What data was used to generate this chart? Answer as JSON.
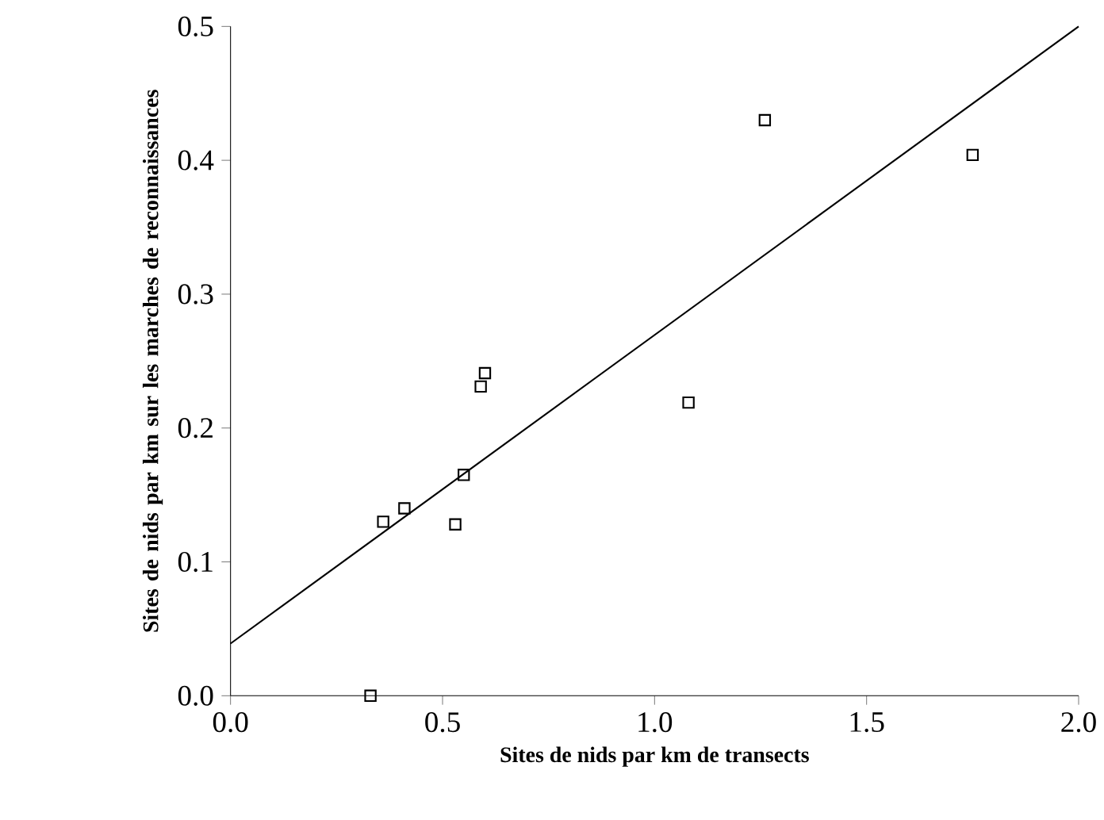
{
  "chart_data": {
    "type": "scatter",
    "xlabel": "Sites de nids par km de transects",
    "ylabel": "Sites de nids par km sur les marches de reconnaissances",
    "xlim": [
      0,
      2
    ],
    "ylim": [
      0,
      0.5
    ],
    "xticks": [
      {
        "value": 0,
        "label": "0.0"
      },
      {
        "value": 0.5,
        "label": "0.5"
      },
      {
        "value": 1,
        "label": "1.0"
      },
      {
        "value": 1.5,
        "label": "1.5"
      },
      {
        "value": 2,
        "label": "2.0"
      }
    ],
    "yticks": [
      {
        "value": 0,
        "label": "0.0"
      },
      {
        "value": 0.1,
        "label": "0.1"
      },
      {
        "value": 0.2,
        "label": "0.2"
      },
      {
        "value": 0.3,
        "label": "0.3"
      },
      {
        "value": 0.4,
        "label": "0.4"
      },
      {
        "value": 0.5,
        "label": "0.5"
      }
    ],
    "grid": false,
    "series": [
      {
        "marker": "square",
        "color": "#000000",
        "x": [
          0.36,
          0.33,
          0.41,
          0.53,
          0.55,
          0.59,
          0.6,
          1.08,
          1.26,
          1.75
        ],
        "values": [
          0.13,
          0.0,
          0.14,
          0.128,
          0.165,
          0.231,
          0.241,
          0.219,
          0.43,
          0.404
        ]
      },
      {
        "type": "line",
        "marker": "none",
        "color": "#000000",
        "x": [
          0,
          2
        ],
        "values": [
          0.039,
          0.5
        ]
      }
    ]
  }
}
